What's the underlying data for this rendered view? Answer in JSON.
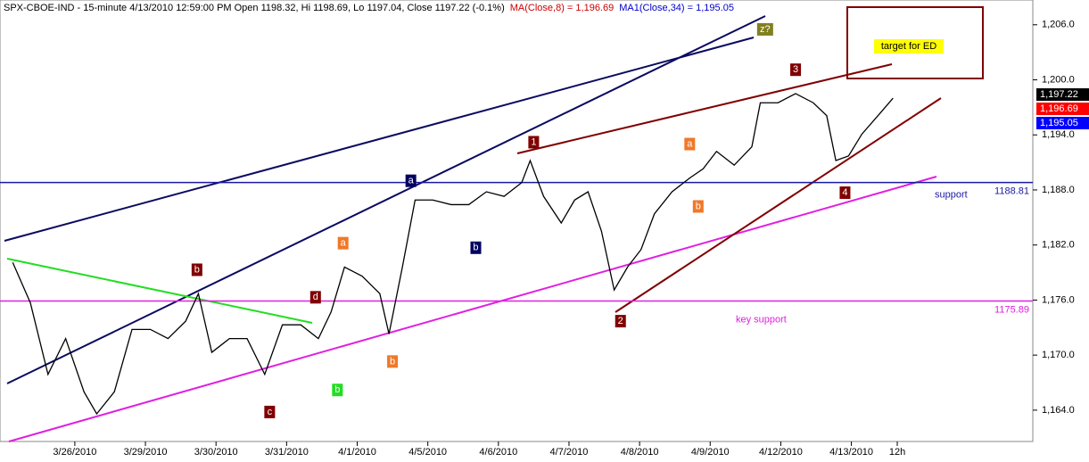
{
  "chart_data": {
    "type": "line",
    "header": [
      {
        "text": "SPX-CBOE-IND - 15-minute 4/13/2010 12:59:00 PM Open 1198.32, Hi 1198.69, Lo 1197.04, Close 1197.22 (-0.1%)",
        "color": "#000000"
      },
      {
        "text": "MA(Close,8) = 1,196.69",
        "color": "#cc0000"
      },
      {
        "text": "MA1(Close,34) = 1,195.05",
        "color": "#0000cc"
      }
    ],
    "x": [
      0.12,
      0.37,
      0.62,
      0.87,
      1.13,
      1.31,
      1.56,
      1.81,
      2.07,
      2.32,
      2.57,
      2.75,
      2.94,
      3.19,
      3.44,
      3.69,
      3.94,
      4.2,
      4.45,
      4.63,
      4.82,
      5.07,
      5.32,
      5.45,
      5.64,
      5.82,
      6.07,
      6.33,
      6.58,
      6.83,
      7.08,
      7.33,
      7.45,
      7.64,
      7.89,
      8.08,
      8.27,
      8.46,
      8.64,
      8.83,
      9.02,
      9.21,
      9.46,
      9.71,
      9.9,
      10.09,
      10.34,
      10.59,
      10.71,
      10.96,
      11.21,
      11.46,
      11.65,
      11.78,
      11.96,
      12.15,
      12.4,
      12.59
    ],
    "series": [
      {
        "name": "Close",
        "color": "#000000",
        "values": [
          1180.1,
          1175.7,
          1167.9,
          1171.8,
          1166.0,
          1163.6,
          1166.0,
          1172.8,
          1172.8,
          1171.8,
          1173.7,
          1176.7,
          1170.3,
          1171.8,
          1171.8,
          1167.9,
          1173.3,
          1173.3,
          1171.8,
          1174.7,
          1179.6,
          1178.6,
          1176.7,
          1172.3,
          1179.6,
          1186.9,
          1186.9,
          1186.4,
          1186.4,
          1187.8,
          1187.3,
          1188.8,
          1191.2,
          1187.3,
          1184.4,
          1186.9,
          1187.8,
          1183.5,
          1177.1,
          1179.6,
          1181.5,
          1185.4,
          1187.8,
          1189.3,
          1190.3,
          1192.2,
          1190.7,
          1192.7,
          1197.5,
          1197.5,
          1198.5,
          1197.5,
          1196.1,
          1191.2,
          1191.7,
          1194.1,
          1196.3,
          1198.0
        ]
      }
    ],
    "xlim": [
      -0.06,
      14.57
    ],
    "xticks": [
      {
        "value": 1,
        "label": "3/26/2010"
      },
      {
        "value": 2,
        "label": "3/29/2010"
      },
      {
        "value": 3,
        "label": "3/30/2010"
      },
      {
        "value": 4,
        "label": "3/31/2010"
      },
      {
        "value": 5,
        "label": "4/1/2010"
      },
      {
        "value": 6,
        "label": "4/5/2010"
      },
      {
        "value": 7,
        "label": "4/6/2010"
      },
      {
        "value": 8,
        "label": "4/7/2010"
      },
      {
        "value": 9,
        "label": "4/8/2010"
      },
      {
        "value": 10,
        "label": "4/9/2010"
      },
      {
        "value": 11,
        "label": "4/12/2010"
      },
      {
        "value": 12,
        "label": "4/13/2010"
      },
      {
        "value": 12.65,
        "label": "12h"
      }
    ],
    "ylim": [
      1160.1,
      1208.7
    ],
    "yticks": [
      {
        "value": 1164,
        "label": "1,164.0"
      },
      {
        "value": 1170,
        "label": "1,170.0"
      },
      {
        "value": 1176,
        "label": "1,176.0"
      },
      {
        "value": 1182,
        "label": "1,182.0"
      },
      {
        "value": 1188,
        "label": "1,188.0"
      },
      {
        "value": 1194,
        "label": "1,194.0"
      },
      {
        "value": 1200,
        "label": "1,200.0"
      },
      {
        "value": 1206,
        "label": "1,206.0"
      }
    ],
    "hlines": [
      {
        "value": 1188.81,
        "color": "#1a1aa0",
        "text": "support"
      },
      {
        "value": 1175.89,
        "color": "#e020e0",
        "text": "key support"
      }
    ],
    "price_tags": [
      {
        "value": 1197.22,
        "label": "1,197.22",
        "color": "#000000"
      },
      {
        "value": 1196.69,
        "label": "1,196.69",
        "color": "#ff0000"
      },
      {
        "value": 1195.05,
        "label": "1,195.05",
        "color": "#0000ff"
      }
    ],
    "annotations": [
      {
        "text": "b",
        "x": 2.73,
        "y": 1179.3,
        "color": "#800000"
      },
      {
        "text": "a",
        "x": 4.8,
        "y": 1182.2,
        "color": "#f07828"
      },
      {
        "text": "d",
        "x": 4.41,
        "y": 1176.3,
        "color": "#800000"
      },
      {
        "text": "c",
        "x": 3.76,
        "y": 1163.8,
        "color": "#800000"
      },
      {
        "text": "b",
        "x": 4.72,
        "y": 1166.2,
        "color": "#22dd22"
      },
      {
        "text": "b",
        "x": 5.5,
        "y": 1169.3,
        "color": "#f07828"
      },
      {
        "text": "a",
        "x": 5.76,
        "y": 1189.0,
        "color": "#000060"
      },
      {
        "text": "b",
        "x": 6.68,
        "y": 1181.7,
        "color": "#000060"
      },
      {
        "text": "1",
        "x": 7.5,
        "y": 1193.2,
        "color": "#800000"
      },
      {
        "text": "2",
        "x": 8.73,
        "y": 1173.7,
        "color": "#800000"
      },
      {
        "text": "a",
        "x": 9.71,
        "y": 1193.0,
        "color": "#f07828"
      },
      {
        "text": "b",
        "x": 9.83,
        "y": 1186.2,
        "color": "#f07828"
      },
      {
        "text": "3",
        "x": 11.21,
        "y": 1201.1,
        "color": "#800000"
      },
      {
        "text": "4",
        "x": 11.91,
        "y": 1187.7,
        "color": "#800000"
      },
      {
        "text": "z?",
        "x": 10.74,
        "y": 1205.5,
        "color": "#808020"
      }
    ],
    "target_note": "target for ED"
  }
}
